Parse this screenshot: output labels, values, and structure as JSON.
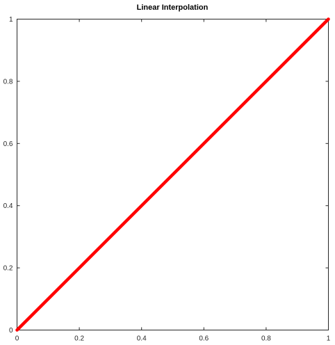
{
  "chart_data": {
    "type": "line",
    "title": "Linear Interpolation",
    "xlabel": "",
    "ylabel": "",
    "xlim": [
      0,
      1
    ],
    "ylim": [
      0,
      1
    ],
    "xticks": [
      0,
      0.2,
      0.4,
      0.6,
      0.8,
      1
    ],
    "yticks": [
      0,
      0.2,
      0.4,
      0.6,
      0.8,
      1
    ],
    "xtick_labels": [
      "0",
      "0.2",
      "0.4",
      "0.6",
      "0.8",
      "1"
    ],
    "ytick_labels": [
      "0",
      "0.2",
      "0.4",
      "0.6",
      "0.8",
      "1"
    ],
    "grid": false,
    "legend": "none",
    "series": [
      {
        "color": "#ff0000",
        "x": [
          0,
          1
        ],
        "y": [
          0,
          1
        ]
      }
    ]
  }
}
